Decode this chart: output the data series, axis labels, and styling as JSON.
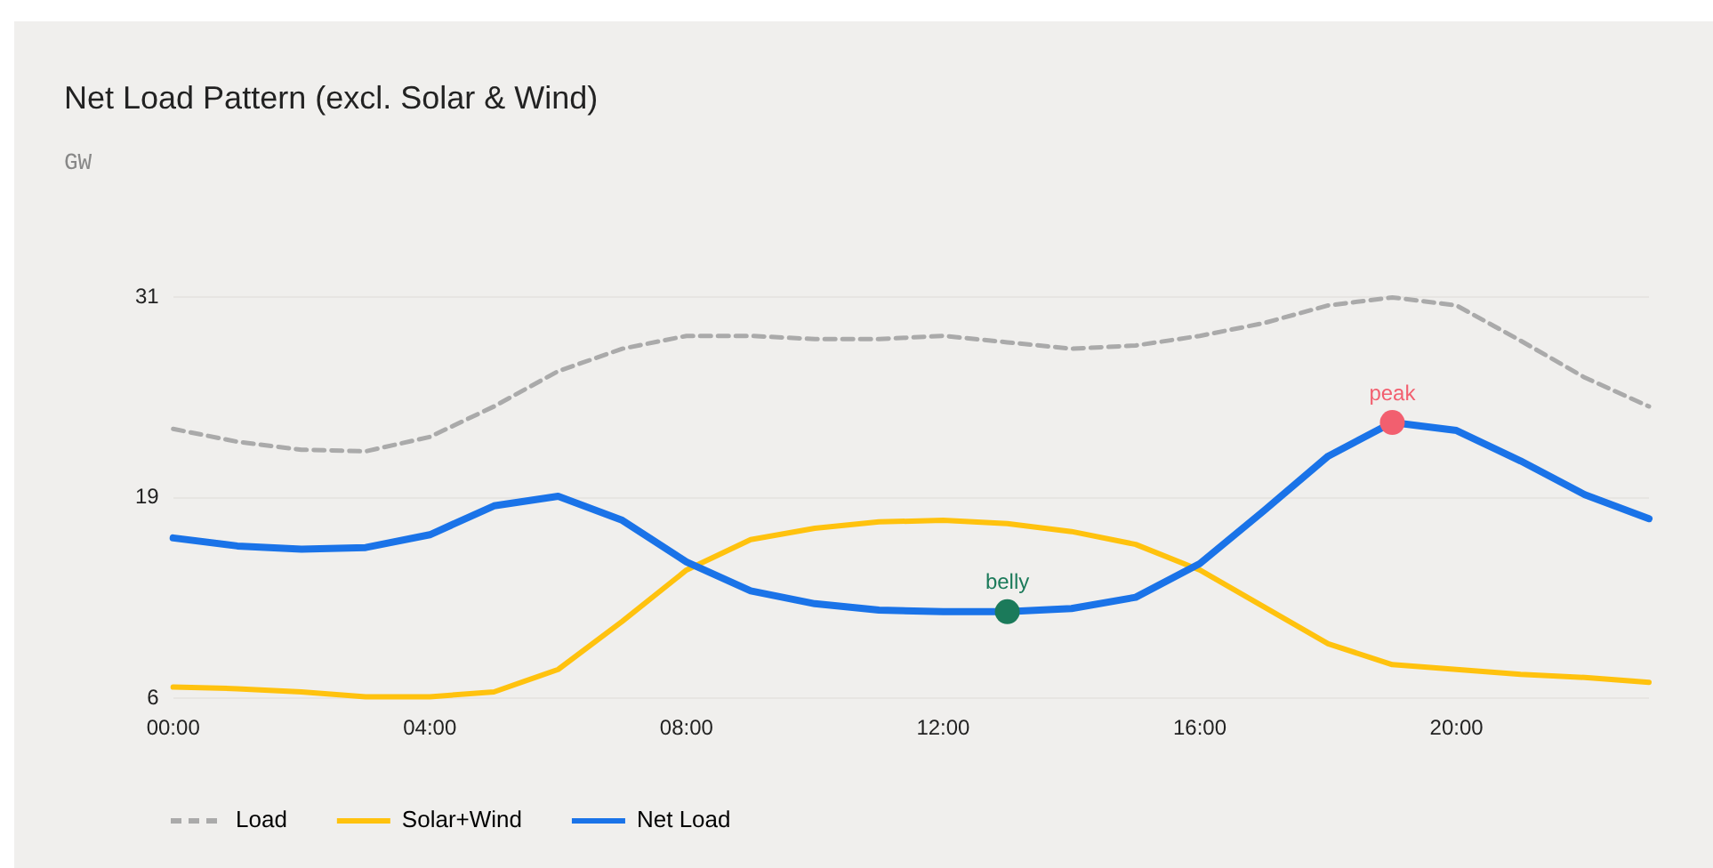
{
  "chart_data": {
    "type": "line",
    "title": "Net Load Pattern (excl. Solar & Wind)",
    "subtitle": "GW",
    "x": [
      0,
      1,
      2,
      3,
      4,
      5,
      6,
      7,
      8,
      9,
      10,
      11,
      12,
      13,
      14,
      15,
      16,
      17,
      18,
      19,
      20,
      21,
      22,
      23
    ],
    "series": [
      {
        "name": "Load",
        "color": "#aaaaaa",
        "line_style": "dashed",
        "values": [
          22.8,
          22.0,
          21.5,
          21.4,
          22.3,
          24.2,
          26.4,
          27.8,
          28.6,
          28.6,
          28.4,
          28.4,
          28.6,
          28.2,
          27.8,
          28.0,
          28.6,
          29.4,
          30.5,
          31.0,
          30.5,
          28.3,
          26.0,
          24.2
        ]
      },
      {
        "name": "Solar+Wind",
        "color": "#ffc20e",
        "line_style": "solid",
        "values": [
          6.7,
          6.6,
          6.4,
          6.1,
          6.1,
          6.4,
          7.8,
          10.8,
          14.0,
          15.9,
          16.6,
          17.0,
          17.1,
          16.9,
          16.4,
          15.6,
          14.0,
          11.7,
          9.4,
          8.1,
          7.8,
          7.5,
          7.3,
          7.0
        ]
      },
      {
        "name": "Net Load",
        "color": "#1a73e8",
        "line_style": "solid",
        "values": [
          16.0,
          15.5,
          15.3,
          15.4,
          16.2,
          18.0,
          18.6,
          17.1,
          14.5,
          12.7,
          11.9,
          11.5,
          11.4,
          11.4,
          11.6,
          12.3,
          14.4,
          17.7,
          21.1,
          23.2,
          22.7,
          20.8,
          18.7,
          17.2
        ]
      }
    ],
    "xlim": [
      0,
      23
    ],
    "xticks": [
      {
        "value": 0,
        "label": "00:00"
      },
      {
        "value": 4,
        "label": "04:00"
      },
      {
        "value": 8,
        "label": "08:00"
      },
      {
        "value": 12,
        "label": "12:00"
      },
      {
        "value": 16,
        "label": "16:00"
      },
      {
        "value": 20,
        "label": "20:00"
      }
    ],
    "ylim": [
      6,
      31
    ],
    "yticks": [
      6,
      {
        "value": 18.5,
        "label": "19"
      },
      31
    ],
    "annotations": [
      {
        "text": "peak",
        "x": 19,
        "y": 23.2
      },
      {
        "text": "belly",
        "x": 13,
        "y": 11.4
      }
    ],
    "grid": "y",
    "legend": "bottom left",
    "marker": "none"
  }
}
